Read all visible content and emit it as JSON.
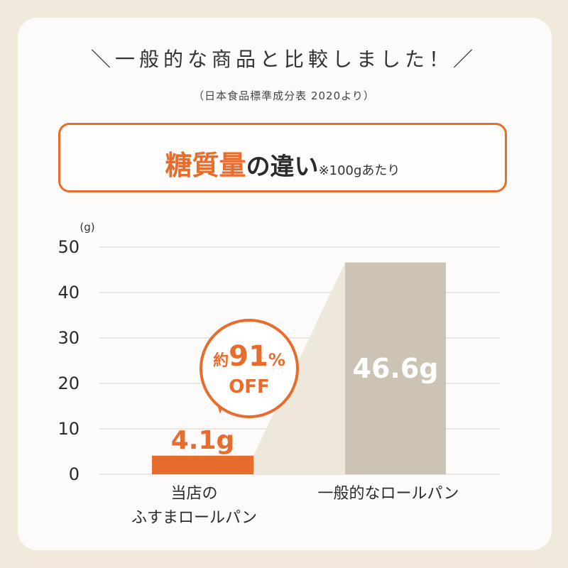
{
  "header": {
    "headline": "＼一般的な商品と比較しました！／",
    "source": "（日本食品標準成分表 2020より）",
    "title_accent": "糖質量",
    "title_rest": "の違い",
    "title_note": "※100gあたり"
  },
  "colors": {
    "accent": "#e86c2c",
    "gray_bar": "#cdc3b5",
    "connector": "#eee7dc",
    "grid": "#d9d3c9",
    "background": "#f1e9dc",
    "card": "#fcfbf9"
  },
  "badge": {
    "prefix": "約",
    "number": "91",
    "percent": "%",
    "off": "OFF"
  },
  "chart_data": {
    "type": "bar",
    "unit_label": "(g)",
    "ylim": [
      0,
      50
    ],
    "yticks": [
      "0",
      "10",
      "20",
      "30",
      "40",
      "50"
    ],
    "grid": true,
    "categories": [
      [
        "当店の",
        "ふすまロールパン"
      ],
      [
        "一般的なロールパン"
      ]
    ],
    "values": [
      4.1,
      46.6
    ],
    "value_labels": [
      "4.1g",
      "46.6g"
    ]
  }
}
